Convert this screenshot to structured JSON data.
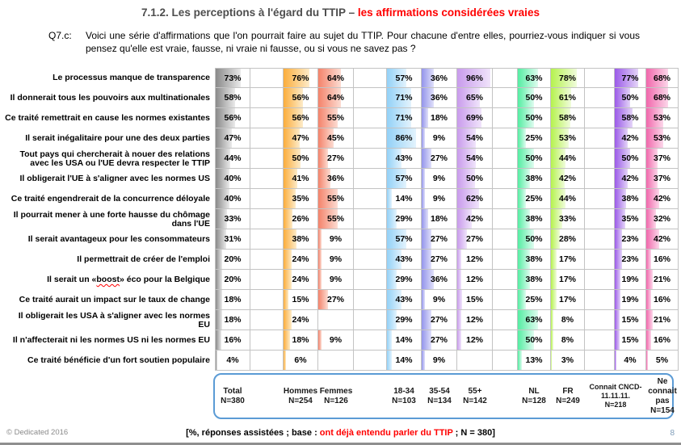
{
  "title": {
    "prefix": "7.1.2. Les perceptions à l'égard du TTIP – ",
    "highlight": "les affirmations considérées vraies"
  },
  "question": {
    "label": "Q7.c:",
    "text": "Voici une série d'affirmations que l'on pourrait faire au sujet du TTIP. Pour chacune d'entre elles, pourriez-vous indiquer si vous pensez qu'elle est vraie, fausse, ni vraie ni fausse, ou si vous ne savez pas ?"
  },
  "chart_data": {
    "type": "table",
    "subtype": "horizontal-data-bars",
    "unit": "%",
    "value_range": [
      0,
      100
    ],
    "misspelled_word": "boost",
    "categories": [
      "Le processus manque de transparence",
      "Il donnerait tous les pouvoirs aux multinationales",
      "Ce traité remettrait en cause les normes existantes",
      "Il serait inégalitaire pour une des deux parties",
      "Tout pays qui chercherait à nouer des relations avec les USA ou l'UE devra respecter le TTIP",
      "Il obligerait l'UE à s'aligner avec les normes US",
      "Ce traité engendrerait de la concurrence déloyale",
      "Il pourrait mener à une forte hausse du chômage dans l'UE",
      "Il serait avantageux pour les consommateurs",
      "Il permettrait de créer de l'emploi",
      "Il serait un « boost » éco pour la Belgique",
      "Ce traité aurait un impact sur le taux de change",
      "Il obligerait les USA à s'aligner avec les normes EU",
      "Il n'affecterait ni les normes US ni les normes EU",
      "Ce traité bénéficie d'un fort soutien populaire"
    ],
    "series": [
      {
        "key": "total",
        "name": "Total",
        "n": "N=380",
        "color": "#8a8a8a",
        "color_light": "#eaeaea",
        "values": [
          73,
          58,
          56,
          47,
          44,
          40,
          40,
          33,
          31,
          20,
          20,
          18,
          18,
          16,
          4
        ]
      },
      {
        "key": "hommes",
        "name": "Hommes",
        "n": "N=254",
        "color": "#fbad3c",
        "color_light": "#fdebc8",
        "values": [
          76,
          56,
          56,
          47,
          50,
          41,
          35,
          26,
          38,
          24,
          24,
          15,
          24,
          18,
          6
        ]
      },
      {
        "key": "femmes",
        "name": "Femmes",
        "n": "N=126",
        "color": "#f4836b",
        "color_light": "#fcdcd2",
        "values": [
          64,
          64,
          55,
          45,
          27,
          36,
          55,
          55,
          9,
          9,
          9,
          27,
          null,
          9,
          null
        ]
      },
      {
        "key": "age-18-34",
        "name": "18-34",
        "n": "N=103",
        "color": "#93d1f7",
        "color_light": "#e3f3fd",
        "values": [
          57,
          71,
          71,
          86,
          43,
          57,
          14,
          29,
          57,
          43,
          29,
          43,
          29,
          14,
          14
        ]
      },
      {
        "key": "age-35-54",
        "name": "35-54",
        "n": "N=134",
        "color": "#9394eb",
        "color_light": "#e0e0fa",
        "values": [
          36,
          36,
          18,
          9,
          27,
          9,
          9,
          18,
          27,
          27,
          36,
          9,
          27,
          27,
          9
        ]
      },
      {
        "key": "age-55-plus",
        "name": "55+",
        "n": "N=142",
        "color": "#c99bec",
        "color_light": "#f0e4fb",
        "values": [
          96,
          65,
          69,
          54,
          54,
          50,
          62,
          42,
          27,
          12,
          12,
          15,
          12,
          12,
          null
        ]
      },
      {
        "key": "nl",
        "name": "NL",
        "n": "N=128",
        "color": "#55eda2",
        "color_light": "#defcef",
        "values": [
          63,
          50,
          50,
          25,
          50,
          38,
          25,
          38,
          50,
          38,
          38,
          25,
          63,
          50,
          13
        ]
      },
      {
        "key": "fr",
        "name": "FR",
        "n": "N=249",
        "color": "#b5f24e",
        "color_light": "#f0fcdb",
        "values": [
          78,
          61,
          58,
          53,
          44,
          42,
          44,
          33,
          28,
          17,
          17,
          17,
          8,
          8,
          3
        ]
      },
      {
        "key": "connait-cncd",
        "name": "Connait CNCD-11.11.11.",
        "n": "N=218",
        "color": "#9b5be8",
        "color_light": "#e4d4f8",
        "values": [
          77,
          50,
          58,
          42,
          50,
          42,
          38,
          35,
          23,
          23,
          19,
          19,
          15,
          15,
          4
        ]
      },
      {
        "key": "ne-connait-pas",
        "name": "Ne connait pas",
        "n": "N=154",
        "color": "#f168ac",
        "color_light": "#fcd6e9",
        "values": [
          68,
          68,
          53,
          53,
          37,
          37,
          42,
          32,
          42,
          16,
          21,
          16,
          21,
          16,
          5
        ]
      }
    ]
  },
  "footer": {
    "copyright": "© Dedicated 2016",
    "note_prefix": "[%, réponses assistées ; base : ",
    "note_highlight": "ont déjà entendu parler du TTIP",
    "note_suffix": " ; N = 380]",
    "page": "8"
  }
}
